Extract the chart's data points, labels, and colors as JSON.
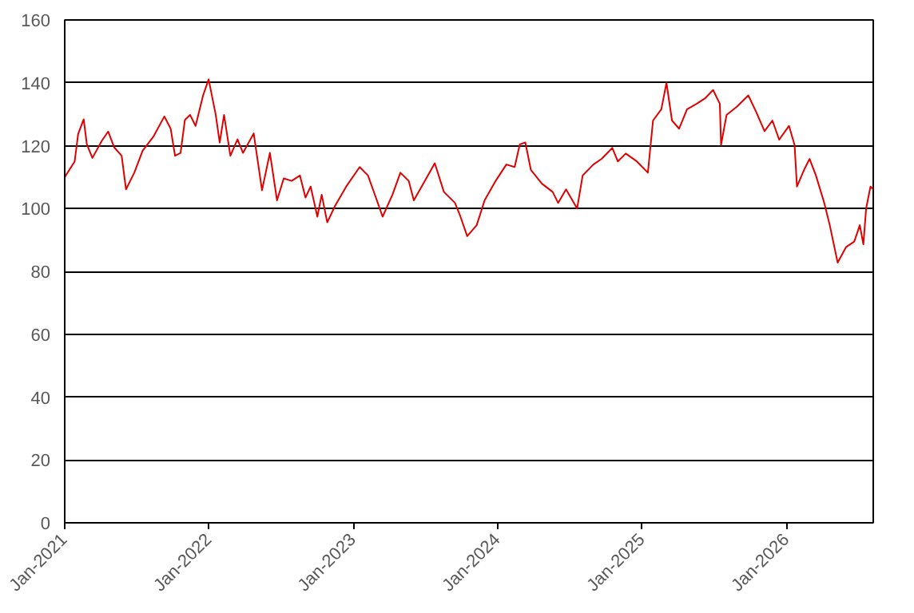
{
  "chart_data": {
    "type": "line",
    "color": "#e00000",
    "grid": "y",
    "line_style": "solid",
    "marker": "none",
    "xlim": [
      "2021-01-01",
      "2026-08-08"
    ],
    "xticks": [
      {
        "value": "2021-01-01",
        "label": "Jan-2021"
      },
      {
        "value": "2022-01-01",
        "label": "Jan-2022"
      },
      {
        "value": "2023-01-01",
        "label": "Jan-2023"
      },
      {
        "value": "2024-01-01",
        "label": "Jan-2024"
      },
      {
        "value": "2025-01-01",
        "label": "Jan-2025"
      },
      {
        "value": "2026-01-01",
        "label": "Jan-2026"
      }
    ],
    "ylim": [
      0,
      160
    ],
    "yticks": [
      0,
      20,
      40,
      60,
      80,
      100,
      120,
      140,
      160
    ],
    "x": [
      "2021-01-01",
      "2021-01-26",
      "2021-02-04",
      "2021-02-18",
      "2021-02-26",
      "2021-03-12",
      "2021-04-05",
      "2021-04-21",
      "2021-05-06",
      "2021-05-25",
      "2021-06-05",
      "2021-06-26",
      "2021-07-17",
      "2021-08-13",
      "2021-09-10",
      "2021-09-26",
      "2021-10-07",
      "2021-10-21",
      "2021-11-01",
      "2021-11-14",
      "2021-11-28",
      "2021-12-17",
      "2021-12-31",
      "2022-01-18",
      "2022-01-28",
      "2022-02-08",
      "2022-02-24",
      "2022-03-14",
      "2022-03-28",
      "2022-04-24",
      "2022-05-15",
      "2022-06-04",
      "2022-06-22",
      "2022-07-09",
      "2022-07-29",
      "2022-08-19",
      "2022-09-02",
      "2022-09-15",
      "2022-10-02",
      "2022-10-13",
      "2022-10-27",
      "2022-11-16",
      "2022-12-14",
      "2023-01-17",
      "2023-02-07",
      "2023-02-27",
      "2023-03-16",
      "2023-04-10",
      "2023-04-30",
      "2023-05-21",
      "2023-06-03",
      "2023-07-01",
      "2023-07-26",
      "2023-08-18",
      "2023-09-15",
      "2023-09-29",
      "2023-10-16",
      "2023-11-09",
      "2023-11-29",
      "2023-12-27",
      "2024-01-23",
      "2024-02-13",
      "2024-02-26",
      "2024-03-11",
      "2024-03-25",
      "2024-04-22",
      "2024-05-19",
      "2024-06-02",
      "2024-06-22",
      "2024-07-20",
      "2024-08-03",
      "2024-08-30",
      "2024-09-20",
      "2024-10-17",
      "2024-10-31",
      "2024-11-20",
      "2024-12-18",
      "2025-01-15",
      "2025-01-28",
      "2025-02-18",
      "2025-03-03",
      "2025-03-17",
      "2025-04-04",
      "2025-04-24",
      "2025-05-18",
      "2025-06-08",
      "2025-06-29",
      "2025-07-16",
      "2025-07-19",
      "2025-08-02",
      "2025-08-29",
      "2025-09-26",
      "2025-10-16",
      "2025-11-06",
      "2025-11-26",
      "2025-12-13",
      "2026-01-07",
      "2026-01-21",
      "2026-01-27",
      "2026-02-14",
      "2026-02-28",
      "2026-03-16",
      "2026-04-06",
      "2026-04-20",
      "2026-05-10",
      "2026-05-31",
      "2026-06-21",
      "2026-07-05",
      "2026-07-14",
      "2026-07-21",
      "2026-08-01",
      "2026-08-08"
    ],
    "values": [
      110,
      114.9,
      123.7,
      128.4,
      120.4,
      116.1,
      121.6,
      124.5,
      119.5,
      116.8,
      106.1,
      111.4,
      118.4,
      122.8,
      129.3,
      125.4,
      116.8,
      117.7,
      128.2,
      129.8,
      126.3,
      136,
      141.1,
      129.8,
      121,
      129.8,
      116.8,
      122,
      117.7,
      123.9,
      105.8,
      117.7,
      102.6,
      109.6,
      108.8,
      110.5,
      103.5,
      107,
      97.4,
      104.4,
      95.6,
      100.9,
      107,
      113.2,
      110.5,
      103.5,
      97.4,
      104.4,
      111.4,
      108.8,
      102.6,
      108.8,
      114.4,
      105.3,
      101.8,
      97.4,
      91.2,
      94.7,
      102.6,
      108.8,
      114,
      113.2,
      120.4,
      121,
      112.3,
      107.9,
      105.3,
      101.8,
      106.1,
      100,
      110.5,
      114,
      115.8,
      119.3,
      115,
      117.5,
      115,
      111.4,
      128,
      131.6,
      140,
      128,
      125.4,
      131.6,
      133.3,
      135,
      137.7,
      133.3,
      120.2,
      129.8,
      132.5,
      136,
      130.7,
      124.6,
      128,
      121.9,
      126.3,
      120.2,
      107,
      112.3,
      115.8,
      110.5,
      101.8,
      94.7,
      82.8,
      87.7,
      89.5,
      94.7,
      88.6,
      100,
      107,
      106
    ]
  }
}
